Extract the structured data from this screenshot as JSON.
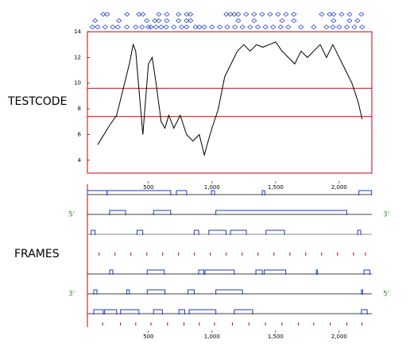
{
  "chart_data": [
    {
      "type": "line",
      "title": "TESTCODE",
      "color": "#000000",
      "frame_color": "#cc0000",
      "xlim": [
        20,
        2257
      ],
      "ylim": [
        3,
        14
      ],
      "yticks": [
        4,
        6,
        8,
        10,
        12,
        14
      ],
      "xticks": [
        500,
        {
          "value": 1000,
          "label": "1,000"
        },
        {
          "value": 1500,
          "label": "1,500"
        },
        {
          "value": 2000,
          "label": "2,000"
        }
      ],
      "hlines": [
        9.6,
        7.4
      ],
      "x": [
        100,
        150,
        200,
        250,
        300,
        350,
        380,
        400,
        430,
        456,
        480,
        500,
        530,
        560,
        600,
        630,
        660,
        700,
        750,
        800,
        850,
        900,
        940,
        970,
        1000,
        1050,
        1100,
        1150,
        1200,
        1250,
        1300,
        1350,
        1400,
        1450,
        1500,
        1550,
        1600,
        1650,
        1700,
        1750,
        1800,
        1850,
        1900,
        1950,
        2000,
        2050,
        2100,
        2150,
        2180
      ],
      "values": [
        5.2,
        6.0,
        6.8,
        7.5,
        9.5,
        11.5,
        13.0,
        12.5,
        9.0,
        6.0,
        9.0,
        11.5,
        12.0,
        10.0,
        7.0,
        6.5,
        7.5,
        6.5,
        7.5,
        6.0,
        5.5,
        6.0,
        4.4,
        5.5,
        6.5,
        8.0,
        10.5,
        11.5,
        12.5,
        13.0,
        12.5,
        13.0,
        12.8,
        13.0,
        13.2,
        12.5,
        12.0,
        11.5,
        12.5,
        12.0,
        12.5,
        13.0,
        12.0,
        13.0,
        12.0,
        11.0,
        10.0,
        8.5,
        7.2
      ],
      "marker_color": "#1a3acc",
      "markers": [
        [
          144,
          175,
          331,
          425,
          456,
          581,
          644,
          737,
          800,
          831,
          1112,
          1144,
          1175,
          1206,
          1269,
          1331,
          1394,
          1456,
          1519,
          1581,
          1644,
          1862,
          1925,
          1956,
          2019,
          2081,
          2175
        ],
        [
          81,
          269,
          487,
          550,
          581,
          644,
          737,
          800,
          831,
          1206,
          1331,
          1550,
          1644,
          1956,
          2081,
          2144
        ],
        [
          60,
          100,
          160,
          220,
          260,
          330,
          400,
          450,
          500,
          520,
          560,
          600,
          640,
          700,
          760,
          800,
          870,
          900,
          940,
          1000,
          1060,
          1120,
          1180,
          1240,
          1300,
          1360,
          1420,
          1480,
          1540,
          1600,
          1700,
          1800,
          1900,
          1950,
          2000,
          2060,
          2120,
          2180
        ]
      ]
    },
    {
      "type": "frames",
      "title": "FRAMES",
      "color": "#1a3acc",
      "stop_color": "#cc0000",
      "xlim": [
        20,
        2257
      ],
      "xticks": [
        500,
        {
          "value": 1000,
          "label": "1,000"
        },
        {
          "value": 1500,
          "label": "1,500"
        },
        {
          "value": 2000,
          "label": "2,000"
        }
      ],
      "forward_labels": [
        "5'",
        "3'"
      ],
      "reverse_labels": [
        "3'",
        "5'"
      ],
      "rows": [
        [
          [
            20,
            175
          ],
          [
            175,
            675
          ],
          [
            720,
            800
          ],
          [
            995,
            1020
          ],
          [
            1395,
            1415
          ],
          [
            2155,
            2255
          ]
        ],
        [
          [
            195,
            320
          ],
          [
            540,
            675
          ],
          [
            1030,
            2060
          ]
        ],
        [
          [
            50,
            80
          ],
          [
            410,
            455
          ],
          [
            860,
            895
          ],
          [
            975,
            1110
          ],
          [
            1145,
            1270
          ],
          [
            1425,
            1570
          ],
          [
            2145,
            2170
          ]
        ],
        [
          [
            195,
            220
          ],
          [
            490,
            625
          ],
          [
            895,
            935
          ],
          [
            945,
            1175
          ],
          [
            1345,
            1395
          ],
          [
            1410,
            1580
          ],
          [
            1820,
            1830
          ],
          [
            2195,
            2240
          ]
        ],
        [
          [
            70,
            95
          ],
          [
            330,
            350
          ],
          [
            490,
            630
          ],
          [
            810,
            860
          ],
          [
            1030,
            1240
          ],
          [
            2175,
            2185
          ]
        ],
        [
          [
            70,
            145
          ],
          [
            155,
            250
          ],
          [
            280,
            425
          ],
          [
            540,
            610
          ],
          [
            740,
            785
          ],
          [
            820,
            1030
          ],
          [
            1175,
            1320
          ],
          [
            2175,
            2220
          ]
        ]
      ],
      "stops": [
        [
          112,
          237,
          362,
          487,
          612,
          737,
          862,
          987,
          1112,
          1237,
          1362,
          1487,
          1612,
          1737,
          1862,
          1987,
          2112,
          2206
        ],
        [
          140,
          280,
          400,
          520,
          650,
          780,
          900,
          1020,
          1160,
          1290,
          1420,
          1550,
          1680,
          1800,
          1930,
          2060,
          2180
        ]
      ]
    }
  ]
}
